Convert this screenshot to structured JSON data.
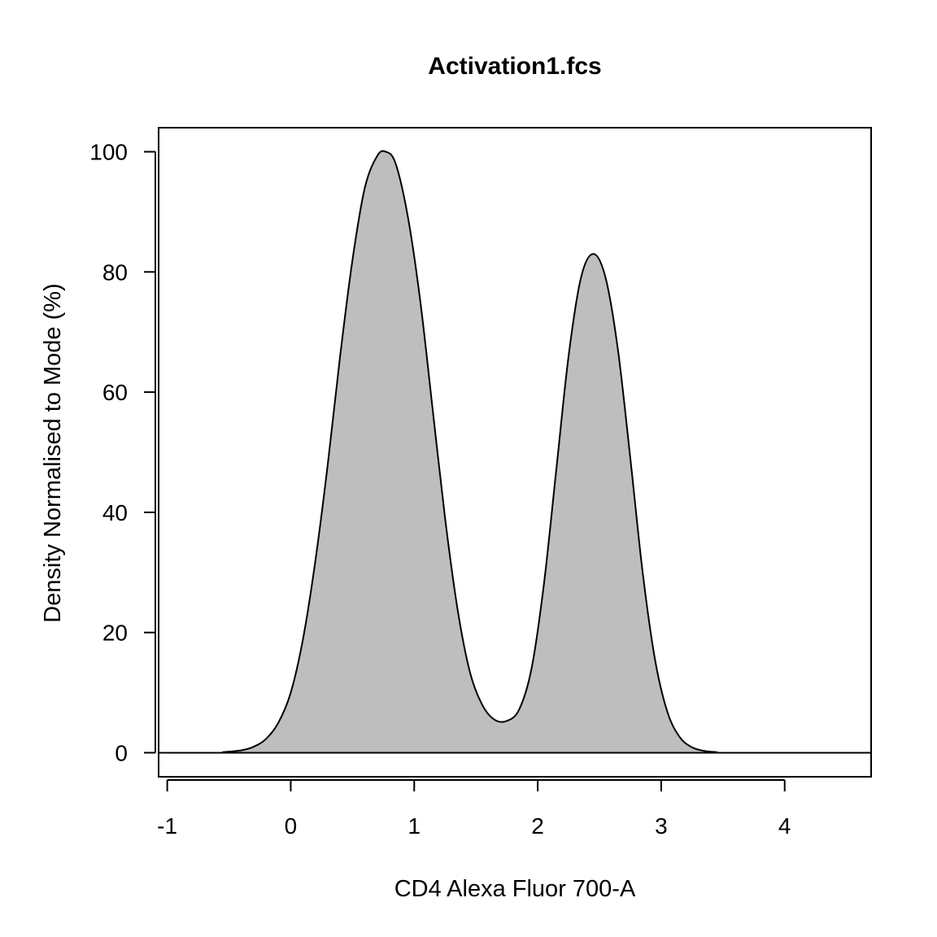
{
  "chart_data": {
    "type": "area",
    "title": "Activation1.fcs",
    "xlabel": "CD4 Alexa Fluor 700-A",
    "ylabel": "Density Normalised to Mode (%)",
    "xlim": [
      -1.07,
      4.7
    ],
    "ylim": [
      -4,
      104
    ],
    "xticks": [
      -1,
      0,
      1,
      2,
      3,
      4
    ],
    "xtick_labels": [
      "-1",
      "0",
      "1",
      "2",
      "3",
      "4"
    ],
    "yticks": [
      0,
      20,
      40,
      60,
      80,
      100
    ],
    "ytick_labels": [
      "0",
      "20",
      "40",
      "60",
      "80",
      "100"
    ],
    "grid": false,
    "fill_color": "#bebebe",
    "line_color": "#000000",
    "series": [
      {
        "x": [
          -0.55,
          -0.4,
          -0.3,
          -0.2,
          -0.1,
          0.0,
          0.1,
          0.2,
          0.3,
          0.4,
          0.5,
          0.6,
          0.7,
          0.77,
          0.85,
          0.95,
          1.05,
          1.15,
          1.25,
          1.35,
          1.45,
          1.55,
          1.65,
          1.75,
          1.85,
          1.95,
          2.05,
          2.15,
          2.25,
          2.35,
          2.45,
          2.55,
          2.65,
          2.75,
          2.85,
          2.95,
          3.05,
          3.15,
          3.25,
          3.35,
          3.45
        ],
        "values": [
          0.1,
          0.4,
          1.0,
          2.3,
          5.0,
          10.0,
          19.0,
          32.0,
          48.0,
          66.0,
          82.0,
          94.0,
          99.3,
          100.0,
          98.0,
          89.0,
          75.0,
          57.0,
          39.0,
          24.0,
          13.5,
          8.0,
          5.5,
          5.3,
          7.2,
          14.0,
          28.0,
          47.0,
          66.0,
          79.0,
          83.0,
          79.0,
          67.0,
          49.0,
          30.0,
          15.5,
          6.8,
          2.6,
          0.9,
          0.3,
          0.1
        ]
      }
    ]
  }
}
